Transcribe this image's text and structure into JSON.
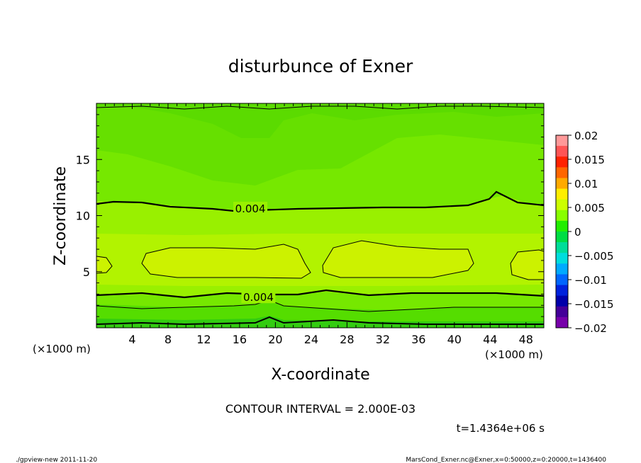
{
  "chart_data": {
    "type": "contour",
    "title": "disturbunce of Exner",
    "xlabel": "X-coordinate",
    "ylabel": "Z-coordinate",
    "x_unit_label": "(×1000 m)",
    "xlim": [
      0,
      50
    ],
    "ylim": [
      0,
      20
    ],
    "x_ticks": [
      4,
      8,
      12,
      16,
      20,
      24,
      28,
      32,
      36,
      40,
      44,
      48
    ],
    "y_ticks": [
      5,
      10,
      15
    ],
    "contour_interval_text": "CONTOUR INTERVAL = 2.000E-03",
    "contour_labels": [
      {
        "text": "0.004",
        "x": 17.2,
        "z": 10.6
      },
      {
        "text": "0.004",
        "x": 18.1,
        "z": 2.7
      }
    ],
    "colorbar": {
      "ticks": [
        "0.02",
        "0.015",
        "0.01",
        "0.005",
        "0",
        "−0.005",
        "−0.01",
        "−0.015",
        "−0.02"
      ],
      "colors": [
        "#ff9999",
        "#ff5555",
        "#ff2200",
        "#ff6600",
        "#ffaa00",
        "#ffee00",
        "#ccff00",
        "#88ff00",
        "#22ee00",
        "#00dd44",
        "#00dd99",
        "#00dddd",
        "#00aaff",
        "#0066ff",
        "#0022dd",
        "#0000aa",
        "#440099",
        "#7700aa"
      ]
    },
    "fill_colors": {
      "level_0.002": "#76e800",
      "level_0.004": "#99f000",
      "level_0.006": "#ccf200",
      "level_0.000": "#33dd00",
      "level_neg": "#00cc33"
    },
    "time_text": "t=1.4364e+06 s",
    "footer_left": "./gpview-new   2011-11-20",
    "footer_right": "MarsCond_Exner.nc@Exner,x=0:50000,z=0:20000,t=1436400"
  }
}
